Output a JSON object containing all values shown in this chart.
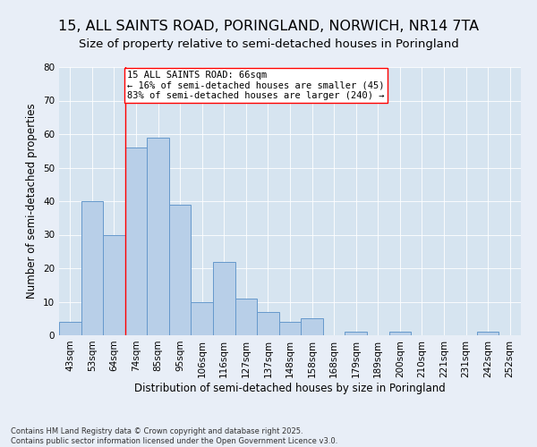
{
  "title": "15, ALL SAINTS ROAD, PORINGLAND, NORWICH, NR14 7TA",
  "subtitle": "Size of property relative to semi-detached houses in Poringland",
  "xlabel": "Distribution of semi-detached houses by size in Poringland",
  "ylabel": "Number of semi-detached properties",
  "categories": [
    "43sqm",
    "53sqm",
    "64sqm",
    "74sqm",
    "85sqm",
    "95sqm",
    "106sqm",
    "116sqm",
    "127sqm",
    "137sqm",
    "148sqm",
    "158sqm",
    "168sqm",
    "179sqm",
    "189sqm",
    "200sqm",
    "210sqm",
    "221sqm",
    "231sqm",
    "242sqm",
    "252sqm"
  ],
  "values": [
    4,
    40,
    30,
    56,
    59,
    39,
    10,
    22,
    11,
    7,
    4,
    5,
    0,
    1,
    0,
    1,
    0,
    0,
    0,
    1,
    0
  ],
  "bar_color": "#b8cfe8",
  "bar_edge_color": "#6699cc",
  "property_line_x": 2.5,
  "annotation_label": "15 ALL SAINTS ROAD: 66sqm",
  "annotation_line1": "← 16% of semi-detached houses are smaller (45)",
  "annotation_line2": "83% of semi-detached houses are larger (240) →",
  "ylim": [
    0,
    80
  ],
  "yticks": [
    0,
    10,
    20,
    30,
    40,
    50,
    60,
    70,
    80
  ],
  "background_color": "#e8eef7",
  "plot_background": "#d6e4f0",
  "footer_line1": "Contains HM Land Registry data © Crown copyright and database right 2025.",
  "footer_line2": "Contains public sector information licensed under the Open Government Licence v3.0.",
  "title_fontsize": 11.5,
  "subtitle_fontsize": 9.5,
  "axis_label_fontsize": 8.5,
  "tick_fontsize": 7.5,
  "annotation_fontsize": 7.5
}
